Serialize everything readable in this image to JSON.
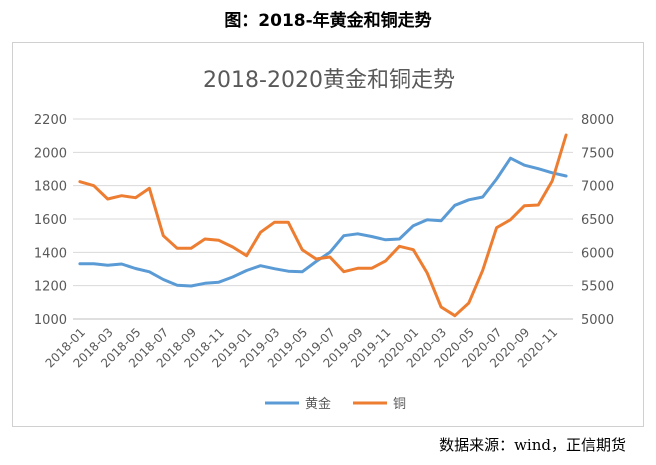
{
  "figure_title": "图：2018-年黄金和铜走势",
  "source_note": "数据来源：wind，正信期货",
  "chart_data": {
    "type": "line",
    "title": "2018-2020黄金和铜走势",
    "x_tick_labels": [
      "2018-01",
      "2018-03",
      "2018-05",
      "2018-07",
      "2018-09",
      "2018-11",
      "2019-01",
      "2019-03",
      "2019-05",
      "2019-07",
      "2019-09",
      "2019-11",
      "2020-01",
      "2020-03",
      "2020-05",
      "2020-07",
      "2020-09",
      "2020-11"
    ],
    "x": [
      "2018-01",
      "2018-02",
      "2018-03",
      "2018-04",
      "2018-05",
      "2018-06",
      "2018-07",
      "2018-08",
      "2018-09",
      "2018-10",
      "2018-11",
      "2018-12",
      "2019-01",
      "2019-02",
      "2019-03",
      "2019-04",
      "2019-05",
      "2019-06",
      "2019-07",
      "2019-08",
      "2019-09",
      "2019-10",
      "2019-11",
      "2019-12",
      "2020-01",
      "2020-02",
      "2020-03",
      "2020-04",
      "2020-05",
      "2020-06",
      "2020-07",
      "2020-08",
      "2020-09",
      "2020-10",
      "2020-11",
      "2020-12"
    ],
    "left_axis": {
      "ylim": [
        1000,
        2200
      ],
      "ticks": [
        1000,
        1200,
        1400,
        1600,
        1800,
        2000,
        2200
      ]
    },
    "right_axis": {
      "ylim": [
        5000,
        8000
      ],
      "ticks": [
        5000,
        5500,
        6000,
        6500,
        7000,
        7500,
        8000
      ]
    },
    "grid": true,
    "legend_position": "bottom",
    "series": [
      {
        "name": "黄金",
        "axis": "left",
        "color": "#5b9bd5",
        "values": [
          1332,
          1332,
          1323,
          1330,
          1303,
          1283,
          1237,
          1202,
          1198,
          1214,
          1221,
          1252,
          1291,
          1320,
          1302,
          1287,
          1283,
          1345,
          1400,
          1500,
          1511,
          1495,
          1475,
          1480,
          1560,
          1596,
          1590,
          1682,
          1715,
          1732,
          1840,
          1965,
          1923,
          1902,
          1877,
          1858
        ]
      },
      {
        "name": "铜",
        "axis": "right",
        "color": "#ed7d31",
        "values": [
          7060,
          7000,
          6800,
          6850,
          6820,
          6960,
          6250,
          6060,
          6060,
          6200,
          6180,
          6080,
          5950,
          6300,
          6450,
          6450,
          6040,
          5900,
          5930,
          5710,
          5760,
          5760,
          5870,
          6090,
          6040,
          5690,
          5180,
          5050,
          5240,
          5730,
          6370,
          6490,
          6700,
          6710,
          7070,
          7760
        ]
      }
    ]
  }
}
